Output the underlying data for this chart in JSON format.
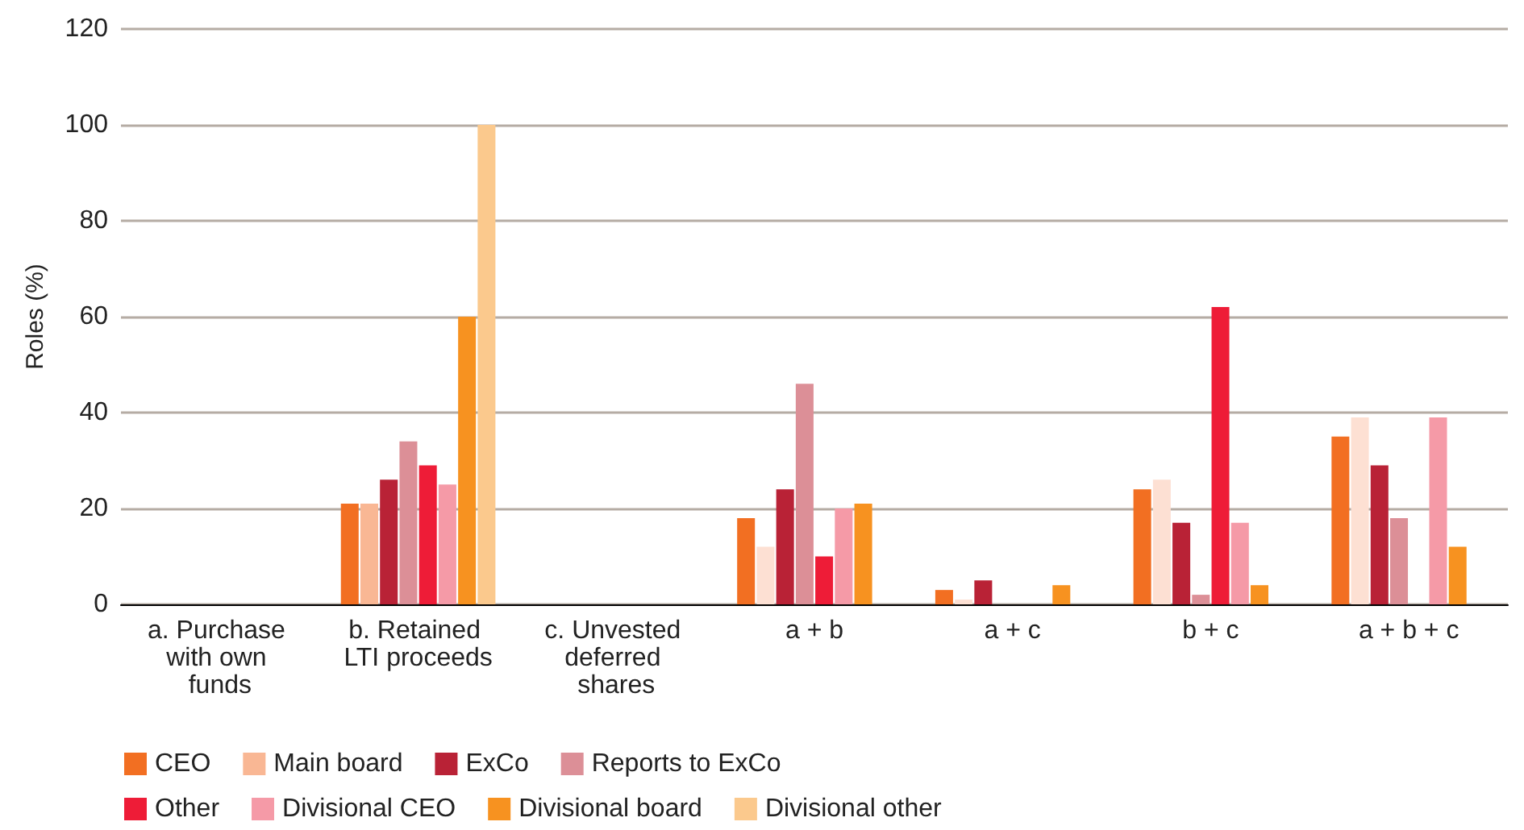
{
  "chart_data": {
    "type": "bar",
    "ylabel": "Roles (%)",
    "categories": [
      "a. Purchase with own funds",
      "b. Retained LTI proceeds",
      "c. Unvested deferred shares",
      "a + b",
      "a + c",
      "b + c",
      "a + b + c"
    ],
    "series": [
      {
        "name": "CEO",
        "color": "#f26f22",
        "values": [
          0,
          21,
          0,
          18,
          3,
          24,
          35
        ]
      },
      {
        "name": "Main board",
        "color": "#f9b794",
        "colors": [
          "#f9b794",
          "#f9b794",
          "#f9b794",
          "#fde0d3",
          "#fde0d3",
          "#fde0d3",
          "#fde0d3"
        ],
        "values": [
          0,
          21,
          0,
          12,
          1,
          26,
          39
        ]
      },
      {
        "name": "ExCo",
        "color": "#b92236",
        "values": [
          0,
          26,
          0,
          24,
          5,
          17,
          29
        ]
      },
      {
        "name": "Reports to ExCo",
        "color": "#dc8f97",
        "values": [
          0,
          34,
          0,
          46,
          0,
          2,
          18
        ]
      },
      {
        "name": "Other",
        "color": "#ee1c37",
        "values": [
          0,
          29,
          0,
          10,
          0,
          62,
          0
        ]
      },
      {
        "name": "Divisional CEO",
        "color": "#f59aa7",
        "values": [
          0,
          25,
          0,
          20,
          0,
          17,
          39
        ]
      },
      {
        "name": "Divisional board",
        "color": "#f79220",
        "values": [
          0,
          60,
          0,
          21,
          4,
          4,
          12
        ]
      },
      {
        "name": "Divisional other",
        "color": "#fbc98d",
        "values": [
          0,
          100,
          0,
          0,
          0,
          0,
          0
        ]
      }
    ],
    "ylim": [
      0,
      120
    ],
    "yticks": [
      0,
      20,
      40,
      60,
      80,
      100,
      120
    ],
    "grid": "y",
    "legend": "bottom"
  }
}
